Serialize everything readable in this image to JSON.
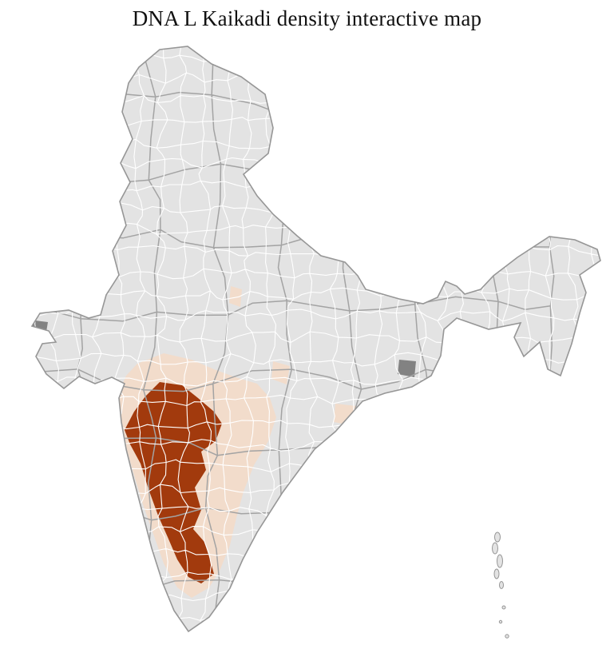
{
  "page": {
    "title": "DNA L Kaikadi density interactive map"
  },
  "map": {
    "region": "India district choropleth",
    "colors": {
      "background": "#ffffff",
      "land": "#e3e3e3",
      "district_border": "#ffffff",
      "state_border": "#a3a3a3",
      "country_outline": "#969696",
      "density_high": "#a23a0d",
      "density_low": "#f2dccb",
      "no_data": "#828282"
    }
  }
}
